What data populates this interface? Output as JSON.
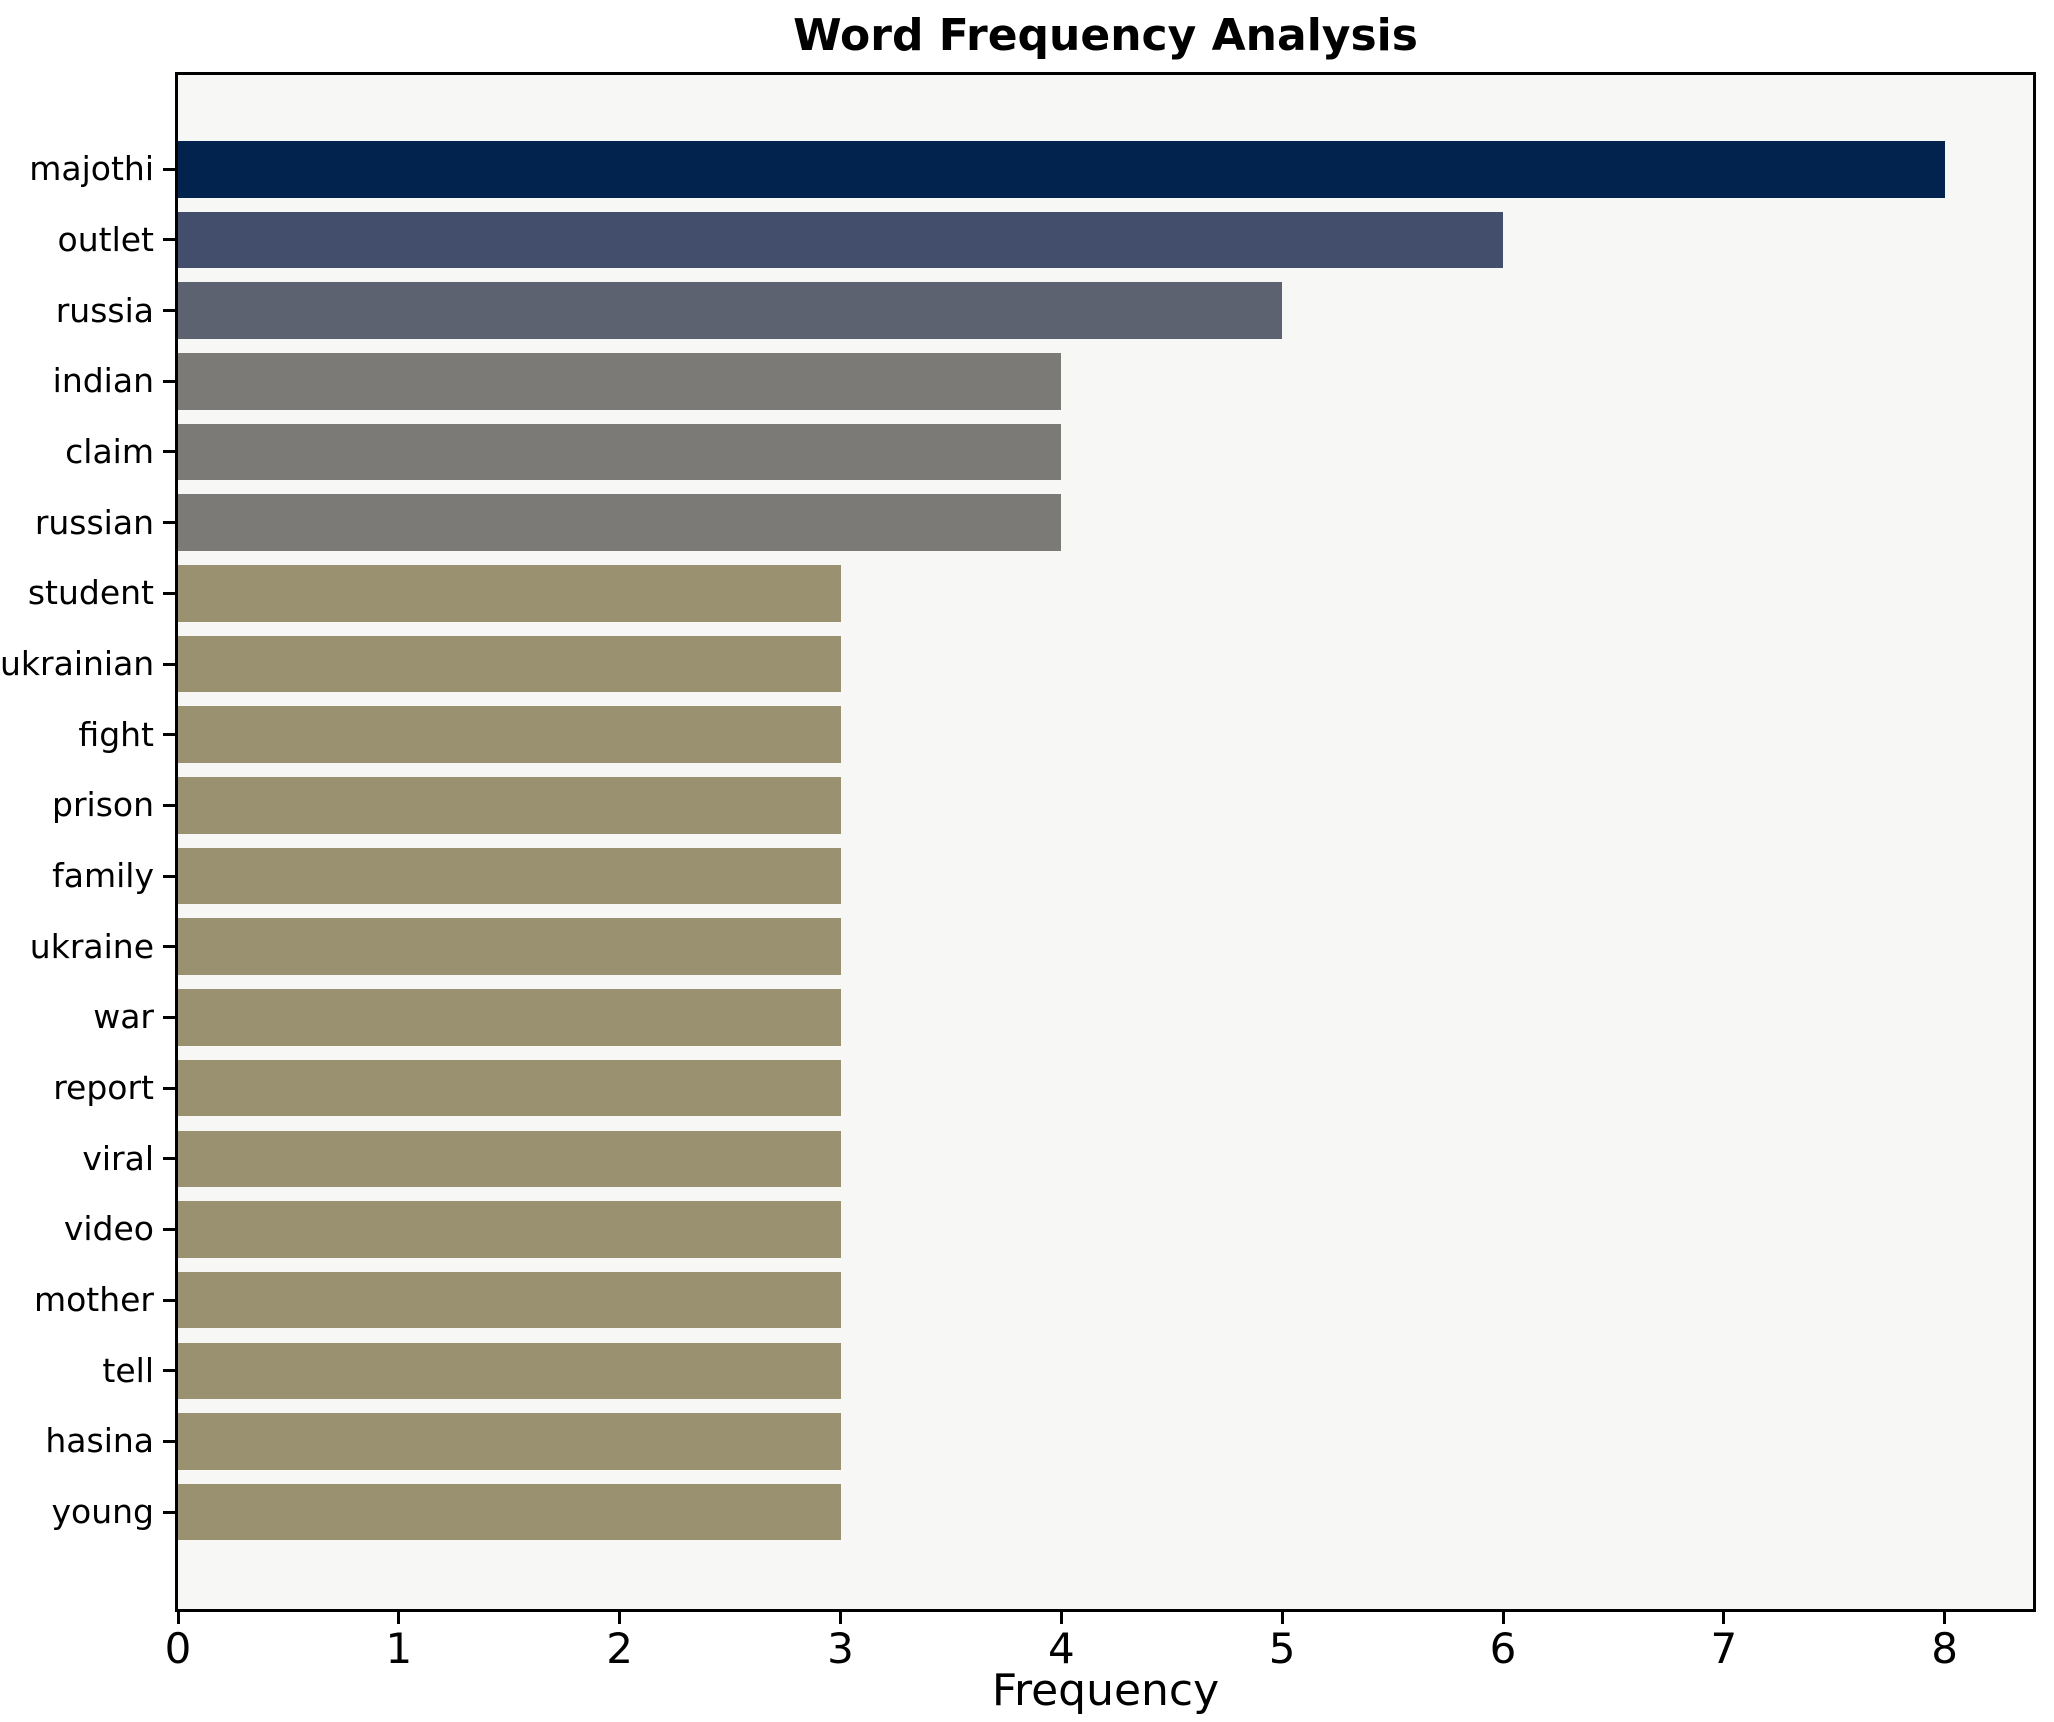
{
  "chart_data": {
    "type": "bar",
    "orientation": "horizontal",
    "title": "Word Frequency Analysis",
    "xlabel": "Frequency",
    "ylabel": "",
    "xlim": [
      0,
      8.4
    ],
    "xticks": [
      0,
      1,
      2,
      3,
      4,
      5,
      6,
      7,
      8
    ],
    "grid": false,
    "legend": null,
    "categories": [
      "majothi",
      "outlet",
      "russia",
      "indian",
      "claim",
      "russian",
      "student",
      "ukrainian",
      "fight",
      "prison",
      "family",
      "ukraine",
      "war",
      "report",
      "viral",
      "video",
      "mother",
      "tell",
      "hasina",
      "young"
    ],
    "values": [
      8,
      6,
      5,
      4,
      4,
      4,
      3,
      3,
      3,
      3,
      3,
      3,
      3,
      3,
      3,
      3,
      3,
      3,
      3,
      3
    ],
    "bar_colors": [
      "#02234d",
      "#434e6d",
      "#5d6271",
      "#7b7a76",
      "#7b7a76",
      "#7b7a76",
      "#9a9170",
      "#9a9170",
      "#9a9170",
      "#9a9170",
      "#9a9170",
      "#9a9170",
      "#9a9170",
      "#9a9170",
      "#9a9170",
      "#9a9170",
      "#9a9170",
      "#9a9170",
      "#9a9170",
      "#9a9170"
    ],
    "colors": {
      "plot_background": "#f7f7f6",
      "figure_background": "#ffffff",
      "axis": "#000000",
      "text": "#000000"
    }
  }
}
